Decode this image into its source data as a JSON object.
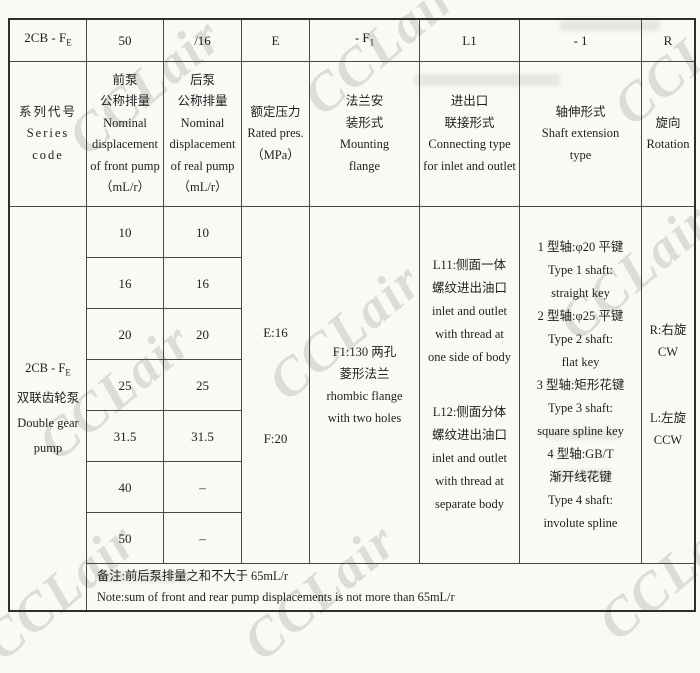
{
  "watermark": {
    "text": "CCLair"
  },
  "top_row": {
    "c1": {
      "base": "2CB - F",
      "sub": "E"
    },
    "c2": "50",
    "c3": "/16",
    "c4": "E",
    "c5": {
      "base": "- F",
      "sub": "1"
    },
    "c6": "L1",
    "c7": "- 1",
    "c8": "R"
  },
  "header": {
    "series": {
      "lines": [
        "系列代号",
        "Series code"
      ]
    },
    "front": {
      "lines": [
        "前泵",
        "公称排量",
        "Nominal",
        "displacement",
        "of front pump",
        "（mL/r）"
      ]
    },
    "rear": {
      "lines": [
        "后泵",
        "公称排量",
        "Nominal",
        "displacement",
        "of real pump",
        "（mL/r）"
      ]
    },
    "pressure": {
      "lines": [
        "额定压力",
        "Rated pres.",
        "（MPa）"
      ]
    },
    "flange": {
      "lines": [
        "法兰安",
        "装形式",
        "Mounting",
        "flange"
      ]
    },
    "connect": {
      "lines": [
        "进出口",
        "联接形式",
        "Connecting type",
        "for inlet and outlet"
      ]
    },
    "shaft": {
      "lines": [
        "轴伸形式",
        "Shaft extension",
        "type"
      ]
    },
    "rotation": {
      "lines": [
        "旋向",
        "Rotation"
      ]
    }
  },
  "body": {
    "series": {
      "line1_base": "2CB - F",
      "line1_sub": "E",
      "lines": [
        "双联齿轮泵",
        "Double gear",
        "pump"
      ]
    },
    "front": [
      "10",
      "16",
      "20",
      "25",
      "31.5",
      "40",
      "50"
    ],
    "rear": [
      "10",
      "16",
      "20",
      "25",
      "31.5",
      "–",
      "–"
    ],
    "pressure": {
      "top": "E:16",
      "bottom": "F:20"
    },
    "flange": {
      "lines": [
        "F1:130 两孔",
        "菱形法兰",
        "rhombic flange",
        "with two holes"
      ]
    },
    "connect": {
      "block1": [
        "L11:侧面一体",
        "螺纹进出油口",
        "inlet and outlet",
        "with thread at",
        "one side of body"
      ],
      "block2": [
        "L12:侧面分体",
        "螺纹进出油口",
        "inlet and outlet",
        "with thread at",
        "separate body"
      ]
    },
    "shaft": {
      "lines": [
        "1 型轴:φ20 平键",
        "Type 1 shaft:",
        "straight key",
        "2 型轴:φ25 平键",
        "Type 2 shaft:",
        "flat key",
        "3 型轴:矩形花键",
        "Type 3 shaft:",
        "square spline key",
        "4 型轴:GB/T",
        "渐开线花键",
        "Type 4 shaft:",
        "involute spline"
      ]
    },
    "rotation": {
      "block1": [
        "R:右旋",
        "CW"
      ],
      "block2": [
        "L:左旋",
        "CCW"
      ]
    }
  },
  "note": {
    "lines": [
      "备注:前后泵排量之和不大于 65mL/r",
      "Note:sum of front and rear pump displacements is not more than 65mL/r"
    ]
  }
}
